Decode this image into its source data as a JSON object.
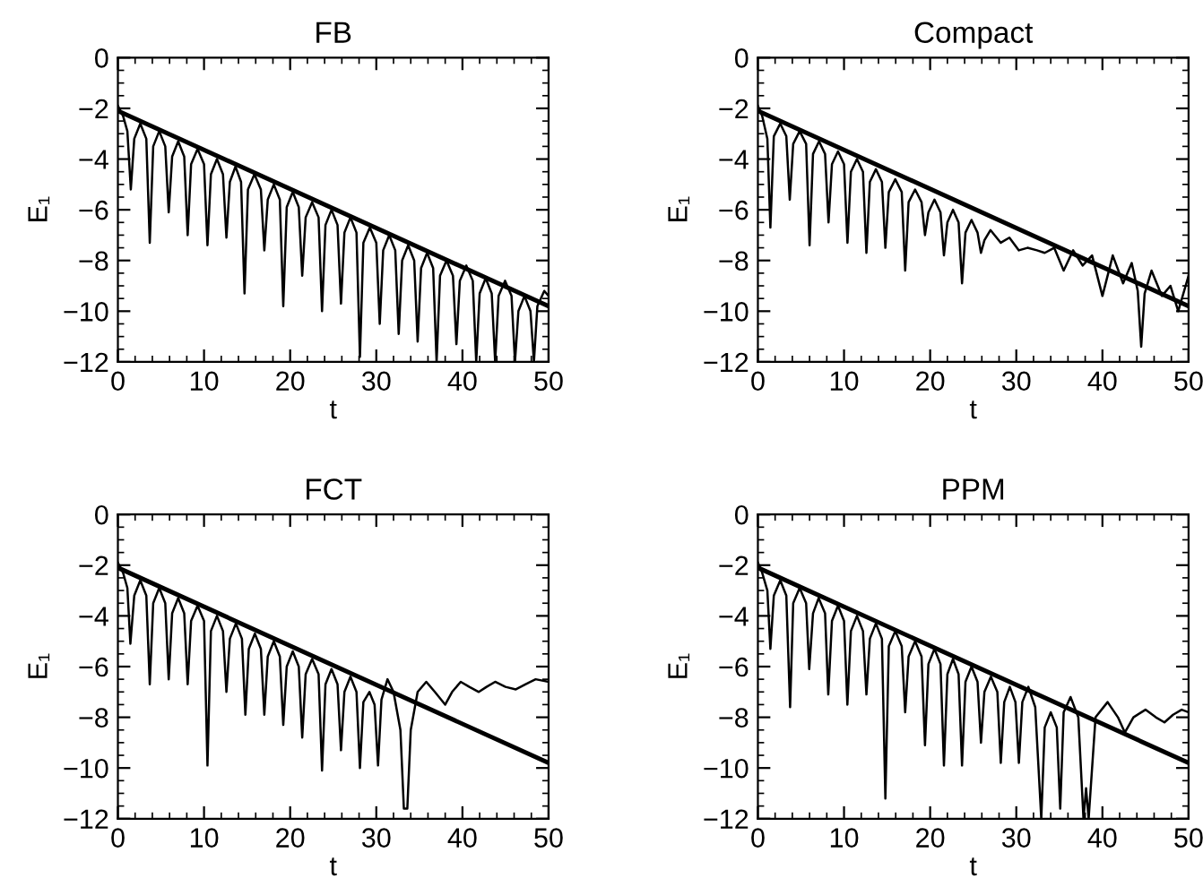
{
  "chart_data": [
    {
      "type": "line",
      "title": "FB",
      "xlabel": "t",
      "ylabel": "E₁",
      "xlim": [
        0,
        50
      ],
      "ylim": [
        -12,
        0
      ],
      "xticks": [
        0,
        10,
        20,
        30,
        40,
        50
      ],
      "yticks": [
        0,
        -2,
        -4,
        -6,
        -8,
        -10,
        -12
      ],
      "series": [
        {
          "color": "#000000",
          "x": [
            0,
            0.6,
            1.1,
            1.5,
            1.9,
            2.6,
            3.3,
            3.7,
            4.1,
            4.8,
            5.5,
            5.9,
            6.3,
            7.0,
            7.7,
            8.1,
            8.5,
            9.25,
            10.0,
            10.4,
            10.8,
            11.5,
            12.2,
            12.6,
            13.0,
            13.65,
            14.3,
            14.7,
            15.1,
            15.85,
            16.6,
            17.0,
            17.4,
            18.1,
            18.8,
            19.2,
            19.6,
            20.3,
            21.0,
            21.4,
            21.8,
            22.55,
            23.3,
            23.7,
            24.1,
            24.8,
            25.5,
            25.9,
            26.3,
            27.0,
            27.7,
            28.1,
            28.5,
            29.25,
            30.0,
            30.4,
            30.8,
            31.5,
            32.2,
            32.6,
            33.0,
            33.7,
            34.4,
            34.8,
            35.2,
            35.9,
            36.6,
            37.0,
            37.4,
            38.15,
            38.9,
            39.3,
            39.7,
            40.45,
            41.2,
            41.6,
            42.0,
            42.7,
            43.4,
            43.8,
            44.2,
            44.95,
            45.7,
            46.1,
            46.5,
            47.2,
            47.9,
            48.3,
            48.7,
            49.5,
            50
          ],
          "values": [
            -1.9,
            -2.3,
            -2.9,
            -5.2,
            -3.2,
            -2.6,
            -3.2,
            -7.3,
            -3.5,
            -2.9,
            -3.5,
            -6.1,
            -3.9,
            -3.3,
            -3.9,
            -7.0,
            -4.2,
            -3.6,
            -4.2,
            -7.4,
            -4.6,
            -4.0,
            -4.6,
            -7.1,
            -4.9,
            -4.3,
            -4.9,
            -9.3,
            -5.2,
            -4.6,
            -5.2,
            -7.6,
            -5.6,
            -5.0,
            -5.6,
            -9.8,
            -5.9,
            -5.3,
            -5.9,
            -8.6,
            -6.3,
            -5.7,
            -6.3,
            -10.0,
            -6.6,
            -6.0,
            -6.6,
            -9.7,
            -6.9,
            -6.3,
            -6.9,
            -11.8,
            -7.3,
            -6.7,
            -7.3,
            -10.5,
            -7.6,
            -7.0,
            -7.6,
            -10.9,
            -8.0,
            -7.4,
            -8.0,
            -11.2,
            -8.3,
            -7.7,
            -8.3,
            -12.0,
            -8.6,
            -8.0,
            -8.6,
            -11.3,
            -8.8,
            -8.2,
            -8.8,
            -12.0,
            -9.3,
            -8.7,
            -9.3,
            -12.0,
            -9.4,
            -8.8,
            -9.4,
            -12.0,
            -10.0,
            -9.4,
            -10.0,
            -12.0,
            -9.8,
            -9.2,
            -9.4
          ]
        },
        {
          "color": "#000000",
          "x": [
            0,
            50
          ],
          "values": [
            -2.1,
            -9.8
          ]
        }
      ]
    },
    {
      "type": "line",
      "title": "Compact",
      "xlabel": "t",
      "ylabel": "E₁",
      "xlim": [
        0,
        50
      ],
      "ylim": [
        -12,
        0
      ],
      "xticks": [
        0,
        10,
        20,
        30,
        40,
        50
      ],
      "yticks": [
        0,
        -2,
        -4,
        -6,
        -8,
        -10,
        -12
      ],
      "series": [
        {
          "color": "#000000",
          "x": [
            0,
            0.5,
            1.1,
            1.45,
            1.85,
            2.6,
            3.3,
            3.7,
            4.1,
            4.85,
            5.6,
            6.0,
            6.4,
            7.1,
            7.8,
            8.2,
            8.6,
            9.3,
            10.0,
            10.4,
            10.8,
            11.5,
            12.2,
            12.6,
            13.0,
            13.7,
            14.4,
            14.8,
            15.2,
            15.95,
            16.7,
            17.1,
            17.5,
            18.25,
            19.0,
            19.4,
            19.8,
            20.5,
            21.2,
            21.6,
            22.0,
            22.65,
            23.3,
            23.7,
            24.1,
            24.8,
            25.5,
            25.9,
            26.3,
            27.0,
            28.2,
            29.2,
            30.3,
            31.3,
            32.4,
            33.3,
            34.4,
            35.5,
            36.6,
            37.7,
            38.8,
            40.0,
            41.2,
            42.4,
            43.4,
            44.1,
            44.5,
            44.9,
            45.7,
            46.9,
            47.9,
            48.8,
            50
          ],
          "values": [
            -1.9,
            -2.3,
            -3.2,
            -6.7,
            -3.1,
            -2.6,
            -3.1,
            -5.6,
            -3.4,
            -2.9,
            -3.4,
            -7.4,
            -3.8,
            -3.3,
            -3.8,
            -6.5,
            -4.2,
            -3.7,
            -4.2,
            -7.3,
            -4.5,
            -4.0,
            -4.5,
            -7.7,
            -4.9,
            -4.4,
            -4.9,
            -7.5,
            -5.3,
            -4.8,
            -5.3,
            -8.4,
            -5.7,
            -5.2,
            -5.7,
            -7.0,
            -6.1,
            -5.6,
            -6.1,
            -7.8,
            -6.5,
            -6.0,
            -6.5,
            -8.9,
            -6.9,
            -6.4,
            -6.9,
            -7.7,
            -7.2,
            -6.8,
            -7.3,
            -7.1,
            -7.6,
            -7.5,
            -7.6,
            -7.7,
            -7.5,
            -8.4,
            -7.6,
            -8.2,
            -7.8,
            -9.4,
            -7.8,
            -8.9,
            -8.1,
            -9.2,
            -11.4,
            -9.3,
            -8.4,
            -9.4,
            -9.0,
            -10.0,
            -8.6
          ]
        },
        {
          "color": "#000000",
          "x": [
            0,
            50
          ],
          "values": [
            -2.1,
            -9.8
          ]
        }
      ]
    },
    {
      "type": "line",
      "title": "FCT",
      "xlabel": "t",
      "ylabel": "E₁",
      "xlim": [
        0,
        50
      ],
      "ylim": [
        -12,
        0
      ],
      "xticks": [
        0,
        10,
        20,
        30,
        40,
        50
      ],
      "yticks": [
        0,
        -2,
        -4,
        -6,
        -8,
        -10,
        -12
      ],
      "series": [
        {
          "color": "#000000",
          "x": [
            0,
            0.6,
            1.1,
            1.45,
            1.9,
            2.6,
            3.3,
            3.7,
            4.1,
            4.8,
            5.5,
            5.9,
            6.3,
            7.0,
            7.7,
            8.1,
            8.5,
            9.25,
            10.0,
            10.4,
            10.8,
            11.5,
            12.2,
            12.6,
            13.0,
            13.7,
            14.4,
            14.8,
            15.2,
            15.9,
            16.6,
            17.0,
            17.4,
            18.1,
            18.8,
            19.2,
            19.6,
            20.3,
            21.0,
            21.4,
            21.8,
            22.55,
            23.3,
            23.7,
            24.1,
            24.8,
            25.5,
            25.9,
            26.3,
            27.0,
            27.7,
            28.1,
            28.5,
            29.2,
            29.8,
            30.2,
            30.6,
            31.3,
            32.0,
            32.8,
            33.2,
            33.6,
            34.0,
            34.8,
            35.8,
            36.8,
            38.0,
            38.8,
            39.8,
            40.8,
            41.9,
            42.8,
            43.8,
            45.0,
            46.2,
            47.3,
            48.5,
            50
          ],
          "values": [
            -1.9,
            -2.3,
            -2.9,
            -5.1,
            -3.2,
            -2.6,
            -3.2,
            -6.7,
            -3.5,
            -2.9,
            -3.5,
            -6.5,
            -3.9,
            -3.3,
            -3.9,
            -6.7,
            -4.2,
            -3.6,
            -4.2,
            -9.9,
            -4.6,
            -4.0,
            -4.6,
            -7.0,
            -4.9,
            -4.3,
            -4.9,
            -7.9,
            -5.3,
            -4.7,
            -5.3,
            -7.9,
            -5.6,
            -5.0,
            -5.6,
            -8.3,
            -6.0,
            -5.4,
            -6.0,
            -8.8,
            -6.3,
            -5.7,
            -6.3,
            -10.1,
            -6.7,
            -6.1,
            -6.7,
            -9.3,
            -7.0,
            -6.4,
            -7.0,
            -10.0,
            -7.4,
            -7.0,
            -7.5,
            -9.9,
            -7.3,
            -6.5,
            -7.0,
            -8.5,
            -11.6,
            -11.6,
            -8.5,
            -7.0,
            -6.6,
            -7.0,
            -7.5,
            -7.0,
            -6.6,
            -6.8,
            -7.0,
            -6.8,
            -6.6,
            -6.8,
            -6.9,
            -6.7,
            -6.5,
            -6.6
          ]
        },
        {
          "color": "#000000",
          "x": [
            0,
            50
          ],
          "values": [
            -2.1,
            -9.8
          ]
        }
      ]
    },
    {
      "type": "line",
      "title": "PPM",
      "xlabel": "t",
      "ylabel": "E₁",
      "xlim": [
        0,
        50
      ],
      "ylim": [
        -12,
        0
      ],
      "xticks": [
        0,
        10,
        20,
        30,
        40,
        50
      ],
      "yticks": [
        0,
        -2,
        -4,
        -6,
        -8,
        -10,
        -12
      ],
      "series": [
        {
          "color": "#000000",
          "x": [
            0,
            0.5,
            1.1,
            1.45,
            1.85,
            2.6,
            3.3,
            3.74,
            4.1,
            4.85,
            5.6,
            5.96,
            6.4,
            7.05,
            7.8,
            8.17,
            8.6,
            9.3,
            10.0,
            10.39,
            10.8,
            11.5,
            12.2,
            12.6,
            13.0,
            13.7,
            14.4,
            14.8,
            15.2,
            15.95,
            16.7,
            17.1,
            17.5,
            18.25,
            19.0,
            19.4,
            19.8,
            20.5,
            21.2,
            21.6,
            22.0,
            22.65,
            23.3,
            23.7,
            24.1,
            24.8,
            25.5,
            25.9,
            26.3,
            27.05,
            27.8,
            28.2,
            28.6,
            29.25,
            29.9,
            30.3,
            30.7,
            31.4,
            32.2,
            32.9,
            33.3,
            34.0,
            34.7,
            35.1,
            35.5,
            36.3,
            37.2,
            37.8,
            38.1,
            38.4,
            39.2,
            40.6,
            41.8,
            42.6,
            43.6,
            45.0,
            46.2,
            47.2,
            48.2,
            49.2,
            50
          ],
          "values": [
            -1.9,
            -2.3,
            -3.0,
            -5.3,
            -3.2,
            -2.6,
            -3.2,
            -7.6,
            -3.5,
            -2.9,
            -3.5,
            -6.1,
            -3.9,
            -3.3,
            -3.9,
            -7.1,
            -4.2,
            -3.6,
            -4.2,
            -7.5,
            -4.6,
            -4.0,
            -4.6,
            -7.1,
            -4.9,
            -4.3,
            -4.9,
            -11.2,
            -5.2,
            -4.6,
            -5.2,
            -7.8,
            -5.6,
            -5.0,
            -5.6,
            -9.1,
            -5.9,
            -5.3,
            -5.9,
            -9.9,
            -6.3,
            -5.7,
            -6.3,
            -9.9,
            -6.6,
            -6.0,
            -6.6,
            -9.0,
            -7.0,
            -6.4,
            -7.0,
            -9.8,
            -7.4,
            -6.8,
            -7.4,
            -9.8,
            -7.4,
            -6.8,
            -7.6,
            -12.0,
            -8.4,
            -7.8,
            -8.4,
            -11.6,
            -7.8,
            -7.2,
            -8.0,
            -12.0,
            -10.8,
            -12.0,
            -8.0,
            -7.4,
            -8.0,
            -8.6,
            -8.0,
            -7.7,
            -8.0,
            -8.2,
            -7.9,
            -7.7,
            -7.8
          ]
        },
        {
          "color": "#000000",
          "x": [
            0,
            50
          ],
          "values": [
            -2.1,
            -9.8
          ]
        }
      ]
    }
  ]
}
